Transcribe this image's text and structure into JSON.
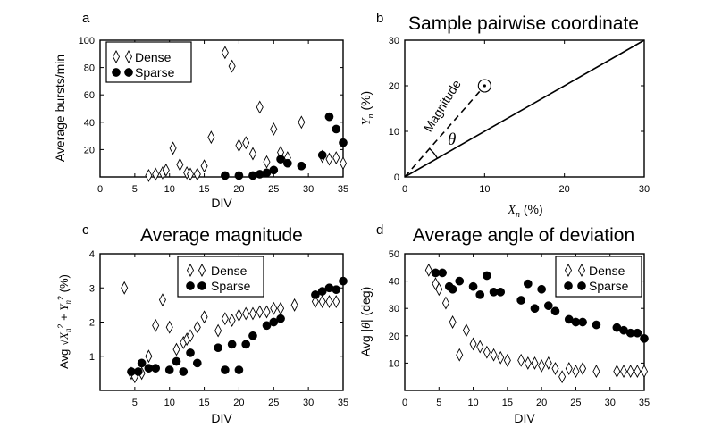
{
  "chart_data": [
    {
      "panel": "a",
      "type": "scatter",
      "title": "",
      "xlabel": "DIV",
      "ylabel": "Average bursts/min",
      "xlim": [
        0,
        35
      ],
      "ylim": [
        0,
        100
      ],
      "xticks": [
        0,
        5,
        10,
        15,
        20,
        25,
        30,
        35
      ],
      "yticks": [
        20,
        40,
        60,
        80,
        100
      ],
      "legend": {
        "position": "top-left",
        "entries": [
          "Dense",
          "Sparse"
        ]
      },
      "series": [
        {
          "name": "Dense",
          "marker": "diamond",
          "x": [
            7,
            8,
            9,
            9.5,
            10.5,
            11.5,
            12.5,
            13,
            14,
            15,
            16,
            18,
            19,
            20,
            21,
            22,
            23,
            24,
            25,
            26,
            27,
            29,
            32,
            33,
            34,
            35
          ],
          "y": [
            1,
            2,
            3,
            5,
            21,
            9,
            3,
            2,
            2,
            8,
            29,
            91,
            81,
            23,
            25,
            17,
            51,
            11,
            35,
            18,
            14,
            40,
            15,
            13,
            14,
            10
          ]
        },
        {
          "name": "Sparse",
          "marker": "circle",
          "x": [
            18,
            20,
            22,
            23,
            24,
            25,
            26,
            27,
            29,
            32,
            33,
            34,
            35
          ],
          "y": [
            1,
            1,
            1,
            2,
            3,
            5,
            13,
            10,
            8,
            16,
            44,
            35,
            25
          ]
        }
      ]
    },
    {
      "panel": "b",
      "type": "line",
      "title": "Sample pairwise coordinate",
      "xlabel": "X_n (%)",
      "ylabel": "Y_n (%)",
      "xlim": [
        0,
        30
      ],
      "ylim": [
        0,
        30
      ],
      "xticks": [
        0,
        10,
        20,
        30
      ],
      "yticks": [
        0,
        10,
        20,
        30
      ],
      "annotations": [
        "Magnitude",
        "θ"
      ],
      "sample_point": {
        "x": 10,
        "y": 20
      },
      "diagonal": [
        [
          0,
          0
        ],
        [
          30,
          30
        ]
      ]
    },
    {
      "panel": "c",
      "type": "scatter",
      "title": "Average magnitude",
      "xlabel": "DIV",
      "ylabel": "Avg √(X_n² + Y_n²) (%)",
      "xlim": [
        0,
        35
      ],
      "ylim": [
        0,
        4
      ],
      "xticks": [
        5,
        10,
        15,
        20,
        25,
        30,
        35
      ],
      "yticks": [
        1,
        2,
        3,
        4
      ],
      "legend": {
        "position": "top-center",
        "entries": [
          "Dense",
          "Sparse"
        ]
      },
      "series": [
        {
          "name": "Dense",
          "marker": "diamond",
          "x": [
            3.5,
            4.5,
            5,
            6,
            7,
            8,
            9,
            10,
            11,
            12,
            12.5,
            13,
            14,
            15,
            17,
            18,
            19,
            20,
            21,
            22,
            23,
            24,
            25,
            26,
            28,
            31,
            32,
            33,
            34
          ],
          "y": [
            3.0,
            0.5,
            0.4,
            0.5,
            1.0,
            1.9,
            2.65,
            1.85,
            1.2,
            1.4,
            1.5,
            1.6,
            1.85,
            2.15,
            1.75,
            2.1,
            2.05,
            2.2,
            2.25,
            2.25,
            2.3,
            2.3,
            2.4,
            2.4,
            2.5,
            2.6,
            2.6,
            2.6,
            2.6
          ]
        },
        {
          "name": "Sparse",
          "marker": "circle",
          "x": [
            4.5,
            5.5,
            6,
            7,
            8,
            10,
            11,
            12,
            13,
            14,
            17,
            18,
            19,
            20,
            21,
            22,
            24,
            25,
            26,
            31,
            32,
            33,
            34,
            35
          ],
          "y": [
            0.55,
            0.55,
            0.8,
            0.65,
            0.65,
            0.6,
            0.85,
            0.55,
            1.1,
            0.8,
            1.25,
            0.6,
            1.35,
            0.6,
            1.35,
            1.6,
            1.9,
            2.0,
            2.1,
            2.8,
            2.9,
            3.0,
            2.95,
            3.2
          ]
        }
      ]
    },
    {
      "panel": "d",
      "type": "scatter",
      "title": "Average angle of deviation",
      "xlabel": "DIV",
      "ylabel": "Avg |θ| (deg)",
      "xlim": [
        0,
        35
      ],
      "ylim": [
        0,
        50
      ],
      "xticks": [
        0,
        5,
        10,
        15,
        20,
        25,
        30,
        35
      ],
      "yticks": [
        10,
        20,
        30,
        40,
        50
      ],
      "legend": {
        "position": "top-right",
        "entries": [
          "Dense",
          "Sparse"
        ]
      },
      "series": [
        {
          "name": "Dense",
          "marker": "diamond",
          "x": [
            3.5,
            4.5,
            5,
            6,
            7,
            8,
            9,
            10,
            11,
            12,
            13,
            14,
            15,
            17,
            18,
            19,
            20,
            21,
            22,
            23,
            24,
            25,
            26,
            28,
            31,
            32,
            33,
            34,
            35
          ],
          "y": [
            44,
            39,
            37,
            32,
            25,
            13,
            22,
            17,
            16,
            14,
            13,
            12,
            11,
            11,
            10,
            10,
            9,
            10,
            8,
            5,
            8,
            7,
            8,
            7,
            7,
            7,
            7,
            7,
            7
          ]
        },
        {
          "name": "Sparse",
          "marker": "circle",
          "x": [
            4.5,
            5.5,
            6.5,
            7,
            8,
            10,
            11,
            12,
            13,
            14,
            17,
            18,
            19,
            20,
            21,
            22,
            24,
            25,
            26,
            28,
            31,
            32,
            33,
            34,
            35
          ],
          "y": [
            43,
            43,
            38,
            37,
            40,
            38,
            35,
            42,
            36,
            36,
            33,
            39,
            30,
            37,
            31,
            29,
            26,
            25,
            25,
            24,
            23,
            22,
            21,
            21,
            19
          ]
        }
      ]
    }
  ],
  "panel_labels": {
    "a": "a",
    "b": "b",
    "c": "c",
    "d": "d"
  },
  "legend_labels": {
    "dense": "Dense",
    "sparse": "Sparse"
  }
}
